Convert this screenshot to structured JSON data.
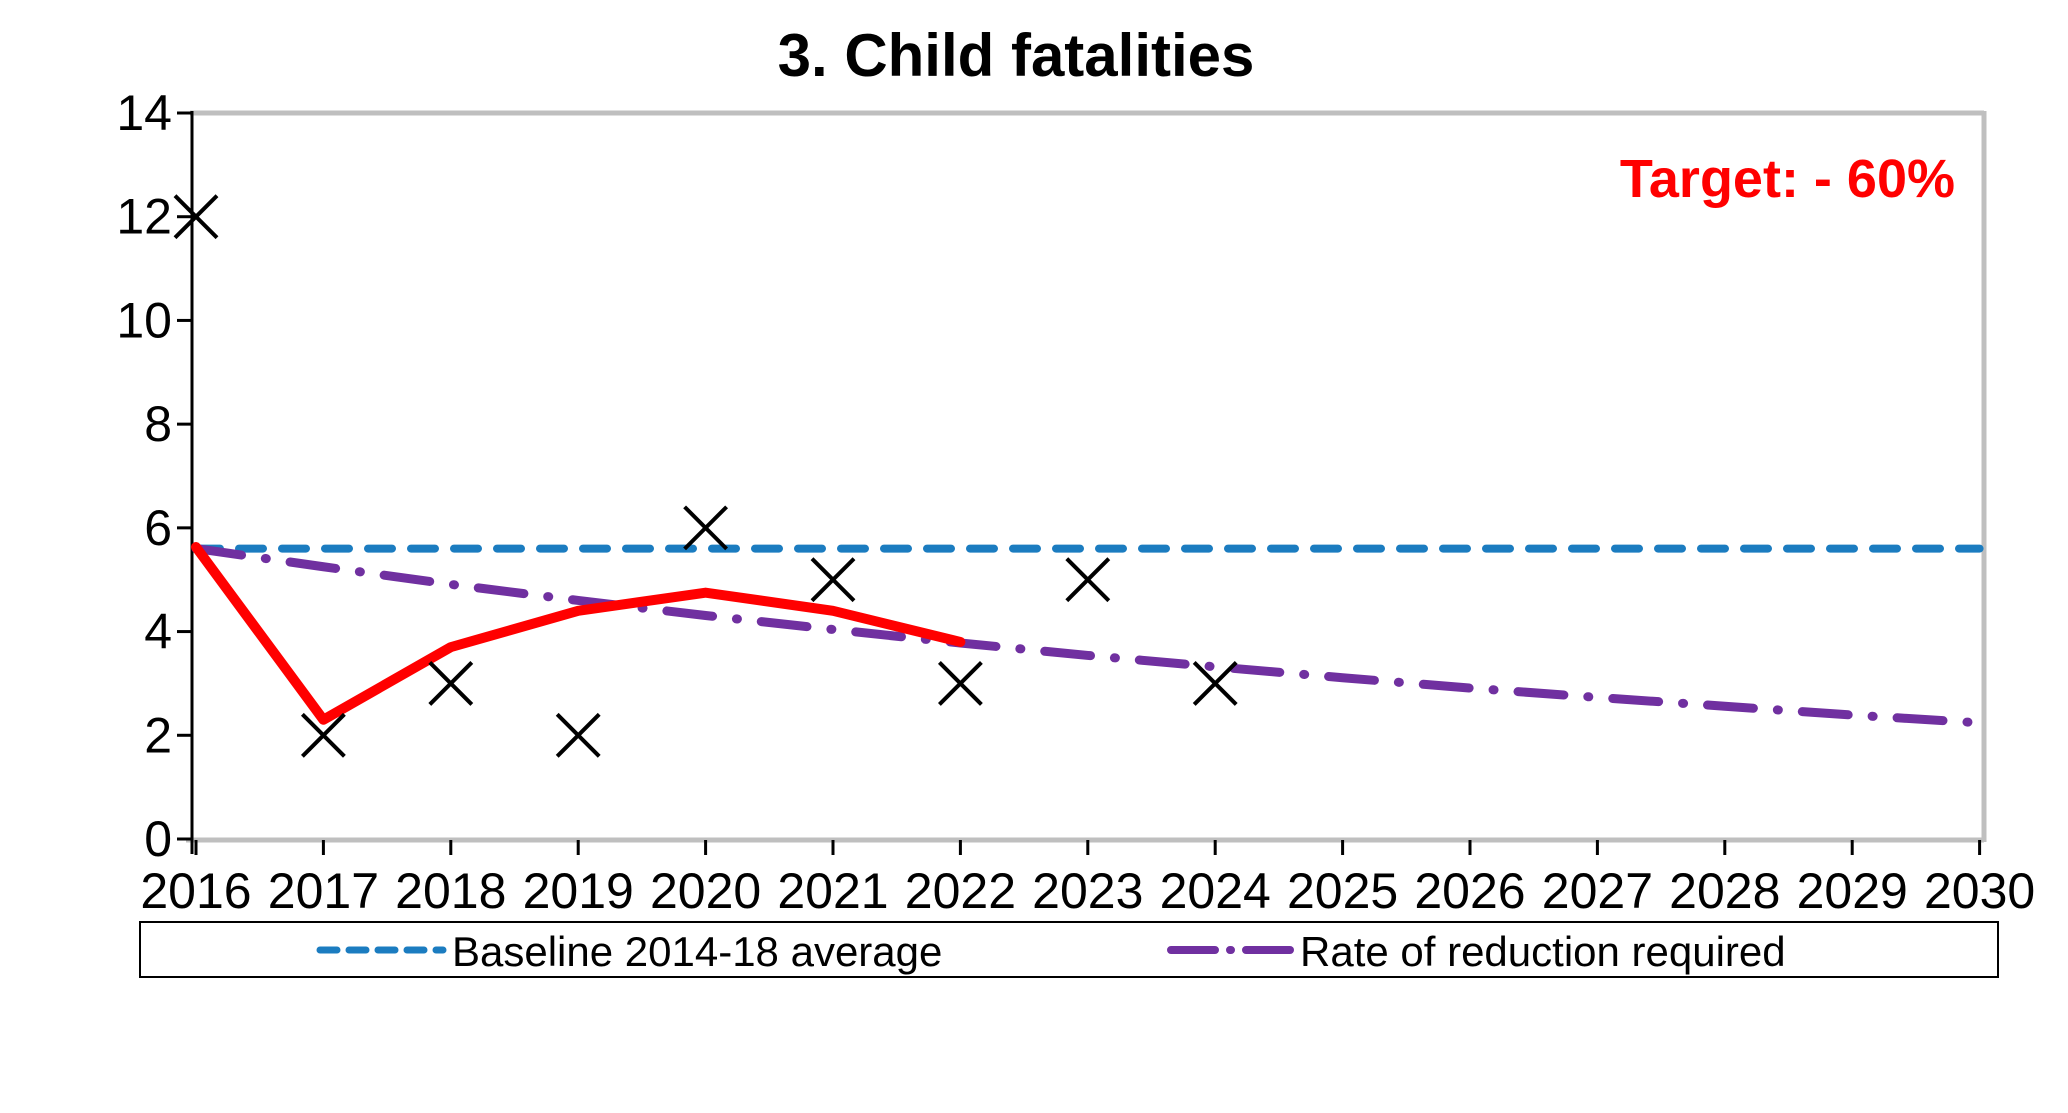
{
  "chart_data": {
    "type": "line",
    "title": "3. Child fatalities",
    "annotation": {
      "text": "Target: - 60%",
      "color": "#FF0000"
    },
    "x_categories": [
      2016,
      2017,
      2018,
      2019,
      2020,
      2021,
      2022,
      2023,
      2024,
      2025,
      2026,
      2027,
      2028,
      2029,
      2030
    ],
    "ylim": [
      0,
      14
    ],
    "y_ticks": [
      0,
      2,
      4,
      6,
      8,
      10,
      12,
      14
    ],
    "grid": false,
    "legend_position": "bottom",
    "series": [
      {
        "id": "baseline",
        "type": "line",
        "dash": "dashed",
        "color": "#1B7CC0",
        "width": 8,
        "legend_label": "Baseline 2014-18 average",
        "x": [
          2016,
          2030
        ],
        "y": [
          5.6,
          5.6
        ]
      },
      {
        "id": "required-reduction",
        "type": "line",
        "dash": "dashdot",
        "color": "#7030A0",
        "width": 9,
        "legend_label": "Rate of reduction required",
        "x": [
          2016,
          2017,
          2018,
          2019,
          2020,
          2021,
          2022,
          2023,
          2024,
          2025,
          2026,
          2027,
          2028,
          2029,
          2030
        ],
        "y": [
          5.6,
          5.25,
          4.91,
          4.6,
          4.31,
          4.04,
          3.78,
          3.54,
          3.32,
          3.11,
          2.91,
          2.73,
          2.56,
          2.39,
          2.24
        ]
      },
      {
        "id": "trend-line",
        "type": "line",
        "dash": "solid",
        "color": "#FF0000",
        "width": 10,
        "x": [
          2016,
          2017,
          2018,
          2019,
          2020,
          2021,
          2022
        ],
        "y": [
          5.63,
          2.3,
          3.7,
          4.4,
          4.75,
          4.4,
          3.8
        ]
      },
      {
        "id": "annual-values",
        "type": "scatter",
        "marker": "x",
        "color": "#000000",
        "x": [
          2016,
          2017,
          2018,
          2019,
          2020,
          2021,
          2022,
          2023,
          2024
        ],
        "y": [
          12,
          2,
          3,
          2,
          6,
          5,
          3,
          5,
          3
        ]
      }
    ],
    "legend": {
      "entries": [
        "Baseline 2014-18 average",
        "Rate of reduction required"
      ]
    },
    "axis_colors": {
      "axis": "#000000",
      "plot_border": "#BFBFBF"
    }
  }
}
